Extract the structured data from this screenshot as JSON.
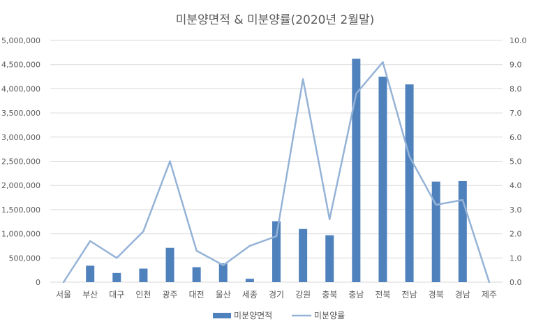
{
  "chart_data": {
    "type": "bar",
    "title": "미분양면적 & 미분양률(2020년 2월말)",
    "categories": [
      "서울",
      "부산",
      "대구",
      "인천",
      "광주",
      "대전",
      "울산",
      "세종",
      "경기",
      "강원",
      "충북",
      "충남",
      "전북",
      "전남",
      "경북",
      "경남",
      "제주"
    ],
    "series": [
      {
        "name": "미분양면적",
        "type": "bar",
        "axis": "left",
        "color": "#4F81BD",
        "values": [
          0,
          340000,
          190000,
          280000,
          710000,
          310000,
          390000,
          70000,
          1260000,
          1100000,
          970000,
          4620000,
          4250000,
          4090000,
          2080000,
          2090000,
          0
        ]
      },
      {
        "name": "미분양률",
        "type": "line",
        "axis": "right",
        "color": "#95B3D7",
        "values": [
          0.0,
          1.7,
          1.0,
          2.1,
          5.0,
          1.3,
          0.7,
          1.5,
          1.9,
          8.4,
          2.6,
          7.8,
          9.1,
          5.2,
          3.2,
          3.4,
          0.0
        ]
      }
    ],
    "y_left": {
      "ylim": [
        0,
        5000000
      ],
      "ticks": [
        "0",
        "500,000",
        "1,000,000",
        "1,500,000",
        "2,000,000",
        "2,500,000",
        "3,000,000",
        "3,500,000",
        "4,000,000",
        "4,500,000",
        "5,000,000"
      ]
    },
    "y_right": {
      "ylim": [
        0,
        10
      ],
      "ticks": [
        "0.0",
        "1.0",
        "2.0",
        "3.0",
        "4.0",
        "5.0",
        "6.0",
        "7.0",
        "8.0",
        "9.0",
        "10.0"
      ]
    },
    "grid": true,
    "legend_position": "bottom"
  }
}
